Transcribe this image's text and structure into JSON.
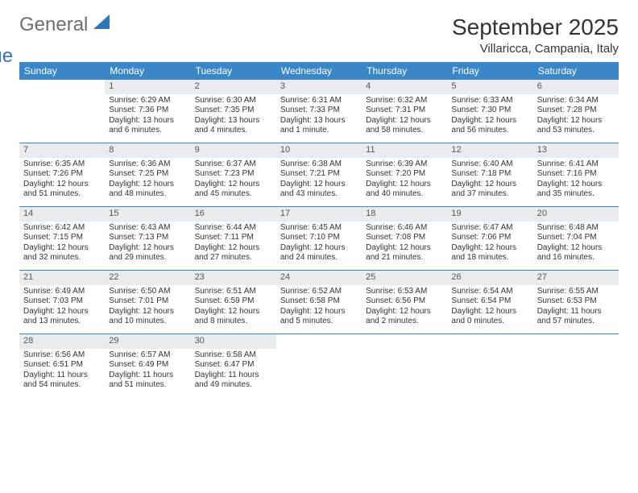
{
  "logo": {
    "part1": "General",
    "part2": "Blue"
  },
  "title": "September 2025",
  "location": "Villaricca, Campania, Italy",
  "colors": {
    "header_bg": "#3b86c6",
    "header_text": "#ffffff",
    "daynum_bg": "#e9ecef",
    "rule": "#3b86c6",
    "logo_blue": "#2f76b8",
    "logo_gray": "#6e6e6e"
  },
  "weekdays": [
    "Sunday",
    "Monday",
    "Tuesday",
    "Wednesday",
    "Thursday",
    "Friday",
    "Saturday"
  ],
  "weeks": [
    [
      {
        "empty": true
      },
      {
        "day": "1",
        "sunrise": "Sunrise: 6:29 AM",
        "sunset": "Sunset: 7:36 PM",
        "daylight": "Daylight: 13 hours and 6 minutes."
      },
      {
        "day": "2",
        "sunrise": "Sunrise: 6:30 AM",
        "sunset": "Sunset: 7:35 PM",
        "daylight": "Daylight: 13 hours and 4 minutes."
      },
      {
        "day": "3",
        "sunrise": "Sunrise: 6:31 AM",
        "sunset": "Sunset: 7:33 PM",
        "daylight": "Daylight: 13 hours and 1 minute."
      },
      {
        "day": "4",
        "sunrise": "Sunrise: 6:32 AM",
        "sunset": "Sunset: 7:31 PM",
        "daylight": "Daylight: 12 hours and 58 minutes."
      },
      {
        "day": "5",
        "sunrise": "Sunrise: 6:33 AM",
        "sunset": "Sunset: 7:30 PM",
        "daylight": "Daylight: 12 hours and 56 minutes."
      },
      {
        "day": "6",
        "sunrise": "Sunrise: 6:34 AM",
        "sunset": "Sunset: 7:28 PM",
        "daylight": "Daylight: 12 hours and 53 minutes."
      }
    ],
    [
      {
        "day": "7",
        "sunrise": "Sunrise: 6:35 AM",
        "sunset": "Sunset: 7:26 PM",
        "daylight": "Daylight: 12 hours and 51 minutes."
      },
      {
        "day": "8",
        "sunrise": "Sunrise: 6:36 AM",
        "sunset": "Sunset: 7:25 PM",
        "daylight": "Daylight: 12 hours and 48 minutes."
      },
      {
        "day": "9",
        "sunrise": "Sunrise: 6:37 AM",
        "sunset": "Sunset: 7:23 PM",
        "daylight": "Daylight: 12 hours and 45 minutes."
      },
      {
        "day": "10",
        "sunrise": "Sunrise: 6:38 AM",
        "sunset": "Sunset: 7:21 PM",
        "daylight": "Daylight: 12 hours and 43 minutes."
      },
      {
        "day": "11",
        "sunrise": "Sunrise: 6:39 AM",
        "sunset": "Sunset: 7:20 PM",
        "daylight": "Daylight: 12 hours and 40 minutes."
      },
      {
        "day": "12",
        "sunrise": "Sunrise: 6:40 AM",
        "sunset": "Sunset: 7:18 PM",
        "daylight": "Daylight: 12 hours and 37 minutes."
      },
      {
        "day": "13",
        "sunrise": "Sunrise: 6:41 AM",
        "sunset": "Sunset: 7:16 PM",
        "daylight": "Daylight: 12 hours and 35 minutes."
      }
    ],
    [
      {
        "day": "14",
        "sunrise": "Sunrise: 6:42 AM",
        "sunset": "Sunset: 7:15 PM",
        "daylight": "Daylight: 12 hours and 32 minutes."
      },
      {
        "day": "15",
        "sunrise": "Sunrise: 6:43 AM",
        "sunset": "Sunset: 7:13 PM",
        "daylight": "Daylight: 12 hours and 29 minutes."
      },
      {
        "day": "16",
        "sunrise": "Sunrise: 6:44 AM",
        "sunset": "Sunset: 7:11 PM",
        "daylight": "Daylight: 12 hours and 27 minutes."
      },
      {
        "day": "17",
        "sunrise": "Sunrise: 6:45 AM",
        "sunset": "Sunset: 7:10 PM",
        "daylight": "Daylight: 12 hours and 24 minutes."
      },
      {
        "day": "18",
        "sunrise": "Sunrise: 6:46 AM",
        "sunset": "Sunset: 7:08 PM",
        "daylight": "Daylight: 12 hours and 21 minutes."
      },
      {
        "day": "19",
        "sunrise": "Sunrise: 6:47 AM",
        "sunset": "Sunset: 7:06 PM",
        "daylight": "Daylight: 12 hours and 18 minutes."
      },
      {
        "day": "20",
        "sunrise": "Sunrise: 6:48 AM",
        "sunset": "Sunset: 7:04 PM",
        "daylight": "Daylight: 12 hours and 16 minutes."
      }
    ],
    [
      {
        "day": "21",
        "sunrise": "Sunrise: 6:49 AM",
        "sunset": "Sunset: 7:03 PM",
        "daylight": "Daylight: 12 hours and 13 minutes."
      },
      {
        "day": "22",
        "sunrise": "Sunrise: 6:50 AM",
        "sunset": "Sunset: 7:01 PM",
        "daylight": "Daylight: 12 hours and 10 minutes."
      },
      {
        "day": "23",
        "sunrise": "Sunrise: 6:51 AM",
        "sunset": "Sunset: 6:59 PM",
        "daylight": "Daylight: 12 hours and 8 minutes."
      },
      {
        "day": "24",
        "sunrise": "Sunrise: 6:52 AM",
        "sunset": "Sunset: 6:58 PM",
        "daylight": "Daylight: 12 hours and 5 minutes."
      },
      {
        "day": "25",
        "sunrise": "Sunrise: 6:53 AM",
        "sunset": "Sunset: 6:56 PM",
        "daylight": "Daylight: 12 hours and 2 minutes."
      },
      {
        "day": "26",
        "sunrise": "Sunrise: 6:54 AM",
        "sunset": "Sunset: 6:54 PM",
        "daylight": "Daylight: 12 hours and 0 minutes."
      },
      {
        "day": "27",
        "sunrise": "Sunrise: 6:55 AM",
        "sunset": "Sunset: 6:53 PM",
        "daylight": "Daylight: 11 hours and 57 minutes."
      }
    ],
    [
      {
        "day": "28",
        "sunrise": "Sunrise: 6:56 AM",
        "sunset": "Sunset: 6:51 PM",
        "daylight": "Daylight: 11 hours and 54 minutes."
      },
      {
        "day": "29",
        "sunrise": "Sunrise: 6:57 AM",
        "sunset": "Sunset: 6:49 PM",
        "daylight": "Daylight: 11 hours and 51 minutes."
      },
      {
        "day": "30",
        "sunrise": "Sunrise: 6:58 AM",
        "sunset": "Sunset: 6:47 PM",
        "daylight": "Daylight: 11 hours and 49 minutes."
      },
      {
        "empty": true
      },
      {
        "empty": true
      },
      {
        "empty": true
      },
      {
        "empty": true
      }
    ]
  ]
}
